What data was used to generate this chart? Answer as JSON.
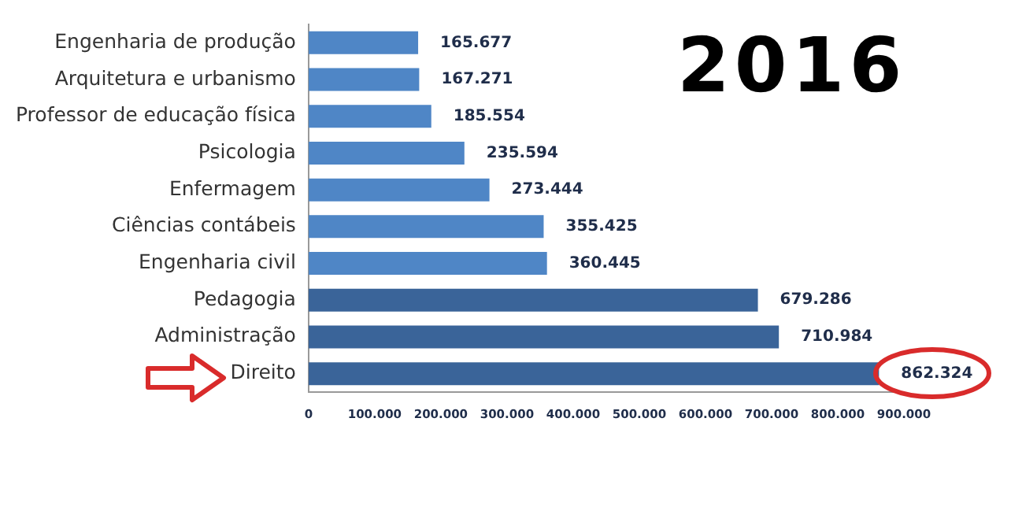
{
  "chart_data": {
    "type": "bar",
    "orientation": "horizontal",
    "title": "2016",
    "categories": [
      "Engenharia de produção",
      "Arquitetura e urbanismo",
      "Professor de educação física",
      "Psicologia",
      "Enfermagem",
      "Ciências contábeis",
      "Engenharia civil",
      "Pedagogia",
      "Administração",
      "Direito"
    ],
    "values": [
      165677,
      167271,
      185554,
      235594,
      273444,
      355425,
      360445,
      679286,
      710984,
      862324
    ],
    "value_labels": [
      "165.677",
      "167.271",
      "185.554",
      "235.594",
      "273.444",
      "355.425",
      "360.445",
      "679.286",
      "710.984",
      "862.324"
    ],
    "colors": [
      "#4f86c6",
      "#4f86c6",
      "#4f86c6",
      "#4f86c6",
      "#4f86c6",
      "#4f86c6",
      "#4f86c6",
      "#3a6499",
      "#3a6499",
      "#3a6499"
    ],
    "xlim": [
      0,
      900000
    ],
    "xticks": [
      0,
      {
        "value": 100000,
        "label": "100.000"
      },
      {
        "value": 200000,
        "label": "200.000"
      },
      {
        "value": 300000,
        "label": "300.000"
      },
      {
        "value": 400000,
        "label": "400.000"
      },
      {
        "value": 500000,
        "label": "500.000"
      },
      {
        "value": 600000,
        "label": "600.000"
      },
      {
        "value": 700000,
        "label": "700.000"
      },
      {
        "value": 800000,
        "label": "800.000"
      },
      {
        "value": 900000,
        "label": "900.000"
      }
    ],
    "grid": false,
    "legend": false
  }
}
